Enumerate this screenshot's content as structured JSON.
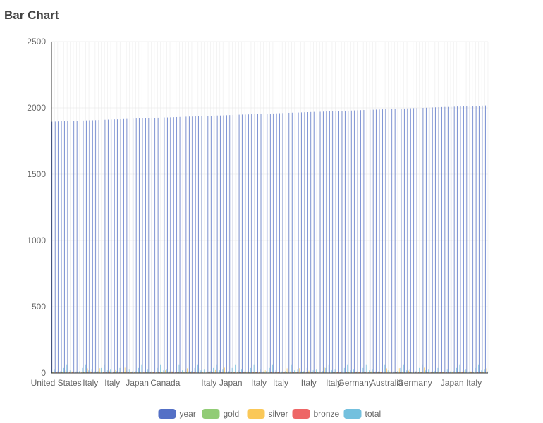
{
  "page": {
    "title": "Bar Chart"
  },
  "chart_data": {
    "type": "bar",
    "title": "",
    "xlabel": "",
    "ylabel": "",
    "ylim": [
      0,
      2500
    ],
    "y_ticks": [
      0,
      500,
      1000,
      1500,
      2000,
      2500
    ],
    "grid": true,
    "legend_position": "bottom",
    "x_tick_labels": [
      "United States",
      "Italy",
      "Italy",
      "Japan",
      "Canada",
      "Italy",
      "Japan",
      "Italy",
      "Italy",
      "Italy",
      "Italy",
      "Germany",
      "Australia",
      "Germany",
      "Japan",
      "Italy"
    ],
    "x_tick_positions": [
      1,
      12,
      19,
      27,
      36,
      50,
      57,
      66,
      73,
      82,
      90,
      97,
      107,
      116,
      128,
      135
    ],
    "category_count": 140,
    "year_range": [
      1896,
      2018
    ],
    "series": [
      {
        "name": "year",
        "color": "#5470c6"
      },
      {
        "name": "gold",
        "color": "#91cc75"
      },
      {
        "name": "silver",
        "color": "#fac858"
      },
      {
        "name": "bronze",
        "color": "#ee6666"
      },
      {
        "name": "total",
        "color": "#73c0de"
      }
    ],
    "medal_values": {
      "gold": [
        7,
        3,
        5,
        6,
        4,
        9,
        2,
        3,
        4,
        2,
        6,
        4,
        4,
        2,
        5,
        7,
        3,
        4,
        5,
        2
      ],
      "silver": [
        10,
        35,
        6,
        8,
        12,
        40,
        8,
        5,
        4,
        6,
        8,
        4,
        20,
        36,
        6,
        4,
        8,
        6,
        12,
        4,
        6,
        3,
        18,
        8,
        6,
        3,
        5,
        10,
        22,
        5,
        6,
        3
      ],
      "bronze": [
        8,
        6,
        5,
        4,
        7,
        3,
        6,
        5,
        8,
        4,
        7,
        3,
        6,
        5,
        4,
        8,
        3,
        6,
        5,
        7
      ],
      "total": [
        25,
        40,
        18,
        22,
        45,
        12,
        30,
        15,
        20,
        35,
        14,
        28,
        50,
        16,
        24,
        38,
        10,
        26,
        42,
        18,
        60,
        22,
        30,
        70,
        35,
        20,
        28,
        40,
        15,
        32
      ]
    }
  }
}
